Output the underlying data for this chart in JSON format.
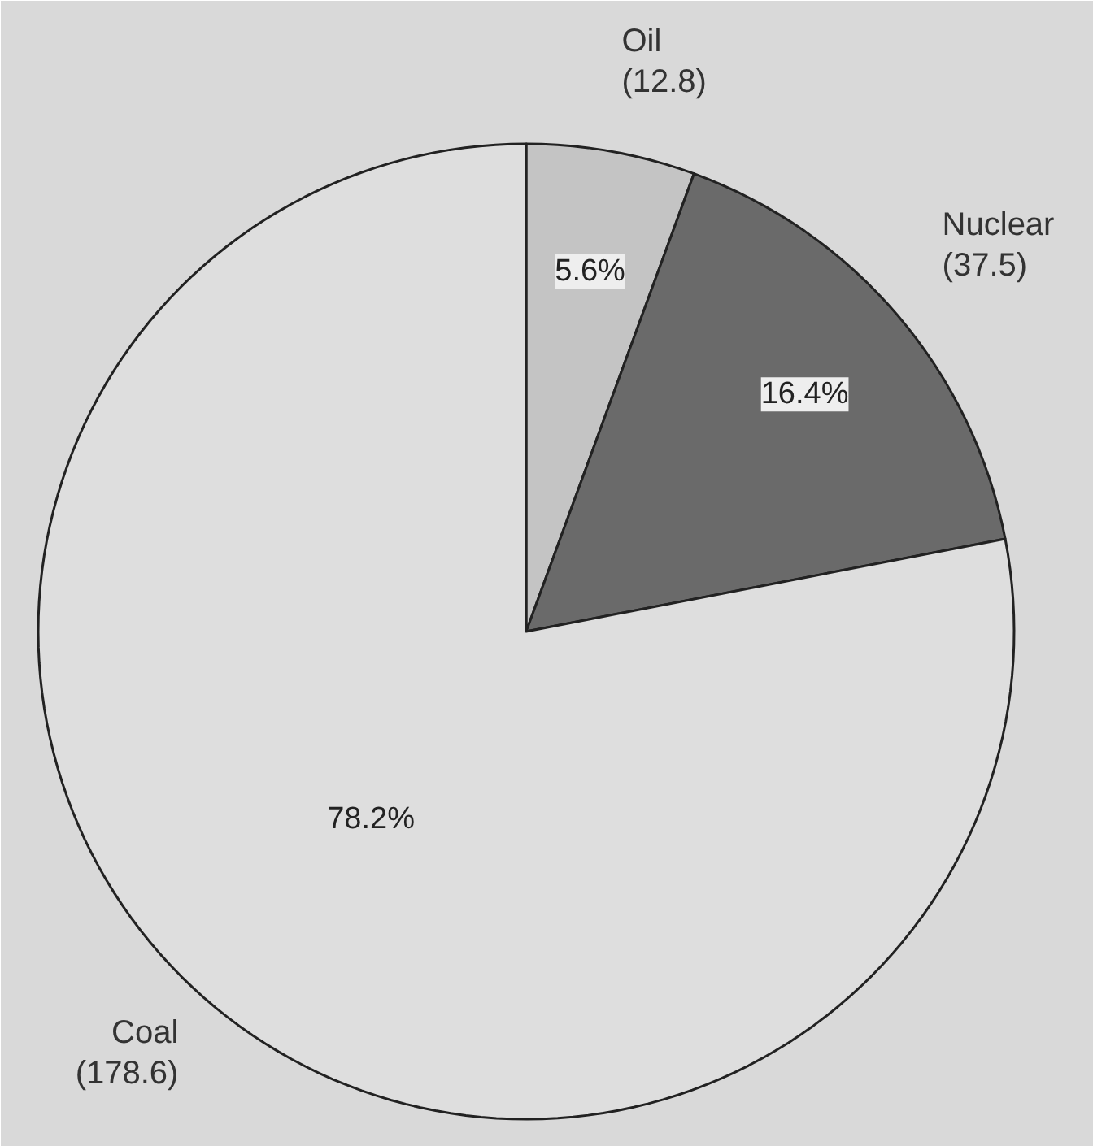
{
  "chart_data": {
    "type": "pie",
    "categories": [
      "Oil",
      "Nuclear",
      "Coal"
    ],
    "values": [
      5.6,
      16.4,
      78.2
    ],
    "colors": [
      "#c4c4c4",
      "#6a6a6a",
      "#dedede"
    ],
    "value_labels": [
      "5.6%",
      "16.4%",
      "78.2%"
    ],
    "annotations": [
      "(12.8)",
      "(37.5)",
      "(178.6)"
    ]
  }
}
